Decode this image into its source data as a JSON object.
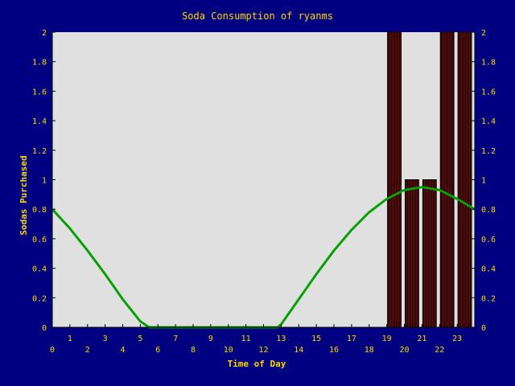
{
  "chart_data": {
    "type": "bar",
    "title": "Soda Consumption of ryanms",
    "xlabel": "Time of Day",
    "ylabel": "Sodas Purchased",
    "xlim": [
      0,
      24
    ],
    "ylim": [
      0,
      2
    ],
    "x_ticks_lower": [
      "0",
      "2",
      "4",
      "6",
      "8",
      "10",
      "12",
      "14",
      "16",
      "18",
      "20",
      "22"
    ],
    "x_ticks_upper": [
      "1",
      "3",
      "5",
      "7",
      "9",
      "11",
      "13",
      "15",
      "17",
      "19",
      "21",
      "23"
    ],
    "y_ticks": [
      "0",
      "0.2",
      "0.4",
      "0.6",
      "0.8",
      "1",
      "1.2",
      "1.4",
      "1.6",
      "1.8",
      "2"
    ],
    "y_tick_values": [
      0,
      0.2,
      0.4,
      0.6,
      0.8,
      1,
      1.2,
      1.4,
      1.6,
      1.8,
      2
    ],
    "grid": false,
    "bars": {
      "x": [
        19,
        20,
        21,
        22,
        23
      ],
      "values": [
        2,
        1,
        1,
        2,
        2
      ]
    },
    "trend_line": {
      "x": [
        0,
        1,
        2,
        3,
        4,
        5,
        5.5,
        12.8,
        13,
        14,
        15,
        16,
        17,
        18,
        19,
        20,
        21,
        22,
        23,
        24
      ],
      "values": [
        0.8,
        0.67,
        0.52,
        0.36,
        0.19,
        0.04,
        0.0,
        0.0,
        0.02,
        0.19,
        0.36,
        0.52,
        0.66,
        0.78,
        0.87,
        0.93,
        0.95,
        0.93,
        0.87,
        0.8
      ]
    },
    "colors": {
      "background": "#000080",
      "plot_area": "#e0e0e0",
      "text": "#ffd700",
      "axis": "#000000",
      "bar_fill": "#800000",
      "bar_stripe": "#000000",
      "trend": "#00a000"
    }
  }
}
